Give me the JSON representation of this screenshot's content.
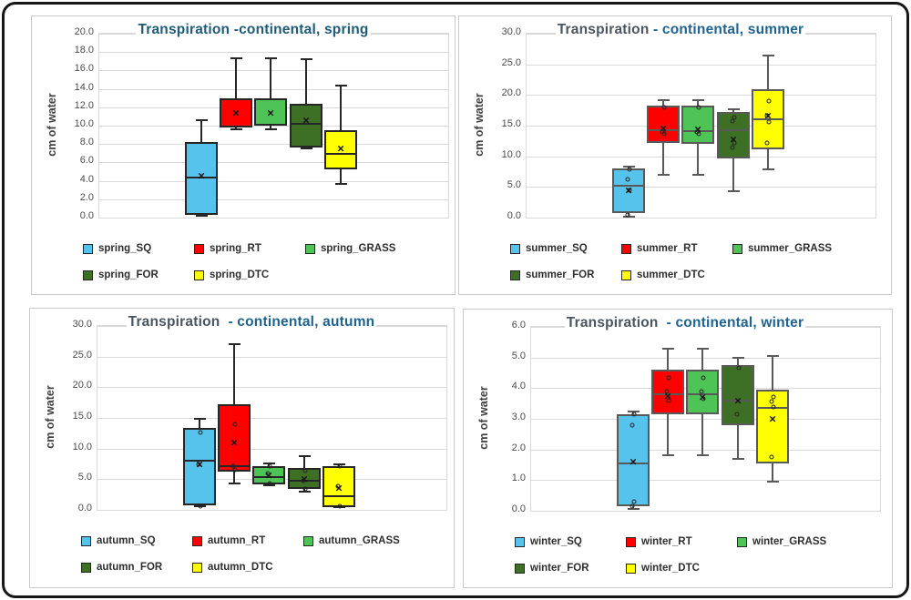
{
  "frame": {
    "background": "#ffffff",
    "border_color": "#161616"
  },
  "accent": {
    "title_blue": "#1f6391",
    "title_gray": "#4a5560",
    "spring_title_teal": "#1e5b78"
  },
  "chart_data": [
    {
      "type": "box",
      "title": "Transpiration -continental, spring",
      "title_parts": [
        {
          "text": "Transpiration -continental, spring",
          "color": "#1e5b78"
        }
      ],
      "ylabel": "cm of water",
      "ylim": [
        0,
        20
      ],
      "ytick_step": 2,
      "tick_decimals": 1,
      "grid": true,
      "legend_position": "bottom",
      "box_border": "#262626",
      "series": [
        {
          "name": "spring_SQ",
          "fill": "#56c3ec",
          "whisker_low": 0.15,
          "q1": 0.3,
          "median": 4.4,
          "q3": 8.2,
          "whisker_high": 10.6,
          "mean": 4.6,
          "points": []
        },
        {
          "name": "spring_RT",
          "fill": "#fe0000",
          "whisker_low": 9.6,
          "q1": 9.8,
          "median": 9.9,
          "q3": 13.0,
          "whisker_high": 17.3,
          "mean": 11.4,
          "points": []
        },
        {
          "name": "spring_GRASS",
          "fill": "#4dc455",
          "whisker_low": 9.6,
          "q1": 10.0,
          "median": 10.1,
          "q3": 13.0,
          "whisker_high": 17.3,
          "mean": 11.4,
          "points": []
        },
        {
          "name": "spring_FOR",
          "fill": "#3d7024",
          "whisker_low": 7.5,
          "q1": 7.6,
          "median": 10.2,
          "q3": 12.4,
          "whisker_high": 17.2,
          "mean": 10.6,
          "points": []
        },
        {
          "name": "spring_DTC",
          "fill": "#ffff00",
          "whisker_low": 3.7,
          "q1": 5.2,
          "median": 6.9,
          "q3": 9.5,
          "whisker_high": 14.4,
          "mean": 7.5,
          "points": []
        }
      ]
    },
    {
      "type": "box",
      "title": "Transpiration - continental, summer",
      "title_parts": [
        {
          "text": "Transpiration ",
          "color": "#4a5560"
        },
        {
          "text": "- continental, summer",
          "color": "#1f6391"
        }
      ],
      "ylabel": "cm of water",
      "ylim": [
        0,
        30
      ],
      "ytick_step": 5,
      "tick_decimals": 1,
      "grid": true,
      "legend_position": "bottom",
      "box_border": "#595959",
      "series": [
        {
          "name": "summer_SQ",
          "fill": "#56c3ec",
          "whisker_low": 0.2,
          "q1": 0.7,
          "median": 5.2,
          "q3": 8.0,
          "whisker_high": 8.3,
          "mean": 4.4,
          "points": [
            7.9,
            6.2,
            4.5,
            0.4
          ]
        },
        {
          "name": "summer_RT",
          "fill": "#fe0000",
          "whisker_low": 7.0,
          "q1": 12.2,
          "median": 14.2,
          "q3": 18.2,
          "whisker_high": 19.2,
          "mean": 14.5,
          "points": [
            17.9,
            14.0,
            13.7
          ]
        },
        {
          "name": "summer_GRASS",
          "fill": "#4dc455",
          "whisker_low": 7.0,
          "q1": 12.1,
          "median": 14.1,
          "q3": 18.2,
          "whisker_high": 19.2,
          "mean": 14.4,
          "points": [
            17.9,
            14.0,
            13.7
          ]
        },
        {
          "name": "summer_FOR",
          "fill": "#3d7024",
          "whisker_low": 4.3,
          "q1": 9.6,
          "median": 14.2,
          "q3": 17.2,
          "whisker_high": 17.6,
          "mean": 12.7,
          "points": [
            16.3,
            15.8,
            12.2,
            11.5
          ]
        },
        {
          "name": "summer_DTC",
          "fill": "#ffff00",
          "whisker_low": 7.9,
          "q1": 11.1,
          "median": 16.0,
          "q3": 21.0,
          "whisker_high": 26.4,
          "mean": 16.6,
          "points": [
            19.0,
            16.7,
            15.6,
            12.2
          ]
        }
      ]
    },
    {
      "type": "box",
      "title": "Transpiration  - continental, autumn",
      "title_parts": [
        {
          "text": "Transpiration  ",
          "color": "#4a5560"
        },
        {
          "text": "- continental, autumn",
          "color": "#1f6391"
        }
      ],
      "ylabel": "cm of water",
      "ylim": [
        0,
        30
      ],
      "ytick_step": 5,
      "tick_decimals": 1,
      "grid": true,
      "legend_position": "bottom",
      "box_border": "#262626",
      "series": [
        {
          "name": "autumn_SQ",
          "fill": "#56c3ec",
          "whisker_low": 0.55,
          "q1": 0.7,
          "median": 8.0,
          "q3": 13.3,
          "whisker_high": 14.9,
          "mean": 7.4,
          "points": [
            12.6,
            7.5,
            0.6
          ]
        },
        {
          "name": "autumn_RT",
          "fill": "#fe0000",
          "whisker_low": 4.3,
          "q1": 6.3,
          "median": 7.2,
          "q3": 17.2,
          "whisker_high": 27.0,
          "mean": 11.0,
          "points": [
            13.9,
            7.1,
            6.5
          ]
        },
        {
          "name": "autumn_GRASS",
          "fill": "#4dc455",
          "whisker_low": 4.0,
          "q1": 4.2,
          "median": 5.4,
          "q3": 7.1,
          "whisker_high": 7.6,
          "mean": 5.7,
          "points": [
            7.1,
            5.9,
            4.3
          ]
        },
        {
          "name": "autumn_FOR",
          "fill": "#3d7024",
          "whisker_low": 3.0,
          "q1": 3.4,
          "median": 4.7,
          "q3": 6.9,
          "whisker_high": 8.8,
          "mean": 5.0,
          "points": [
            6.4,
            4.8,
            3.4
          ]
        },
        {
          "name": "autumn_DTC",
          "fill": "#ffff00",
          "whisker_low": 0.4,
          "q1": 0.5,
          "median": 2.3,
          "q3": 7.2,
          "whisker_high": 7.4,
          "mean": 3.6,
          "points": [
            7.2,
            3.8,
            0.6
          ]
        }
      ]
    },
    {
      "type": "box",
      "title": "Transpiration  - continental, winter",
      "title_parts": [
        {
          "text": "Transpiration  ",
          "color": "#4a5560"
        },
        {
          "text": "- continental, winter",
          "color": "#1f6391"
        }
      ],
      "ylabel": "cm of water",
      "ylim": [
        0,
        6
      ],
      "ytick_step": 1,
      "tick_decimals": 1,
      "grid": true,
      "legend_position": "bottom",
      "box_border": "#595959",
      "series": [
        {
          "name": "winter_SQ",
          "fill": "#56c3ec",
          "whisker_low": 0.05,
          "q1": 0.15,
          "median": 1.55,
          "q3": 3.15,
          "whisker_high": 3.25,
          "mean": 1.6,
          "points": [
            3.15,
            2.8,
            0.3,
            0.15
          ]
        },
        {
          "name": "winter_RT",
          "fill": "#fe0000",
          "whisker_low": 1.8,
          "q1": 3.15,
          "median": 3.8,
          "q3": 4.6,
          "whisker_high": 5.3,
          "mean": 3.75,
          "points": [
            4.35,
            3.9,
            3.6
          ]
        },
        {
          "name": "winter_GRASS",
          "fill": "#4dc455",
          "whisker_low": 1.8,
          "q1": 3.15,
          "median": 3.8,
          "q3": 4.6,
          "whisker_high": 5.3,
          "mean": 3.7,
          "points": [
            4.35,
            3.9,
            3.65
          ]
        },
        {
          "name": "winter_FOR",
          "fill": "#3d7024",
          "whisker_low": 1.7,
          "q1": 2.8,
          "median": 3.6,
          "q3": 4.75,
          "whisker_high": 5.0,
          "mean": 3.6,
          "points": [
            4.65,
            3.15
          ]
        },
        {
          "name": "winter_DTC",
          "fill": "#ffff00",
          "whisker_low": 0.95,
          "q1": 1.55,
          "median": 3.35,
          "q3": 3.95,
          "whisker_high": 5.05,
          "mean": 3.0,
          "points": [
            3.7,
            3.55,
            3.4,
            1.75
          ]
        }
      ]
    }
  ]
}
